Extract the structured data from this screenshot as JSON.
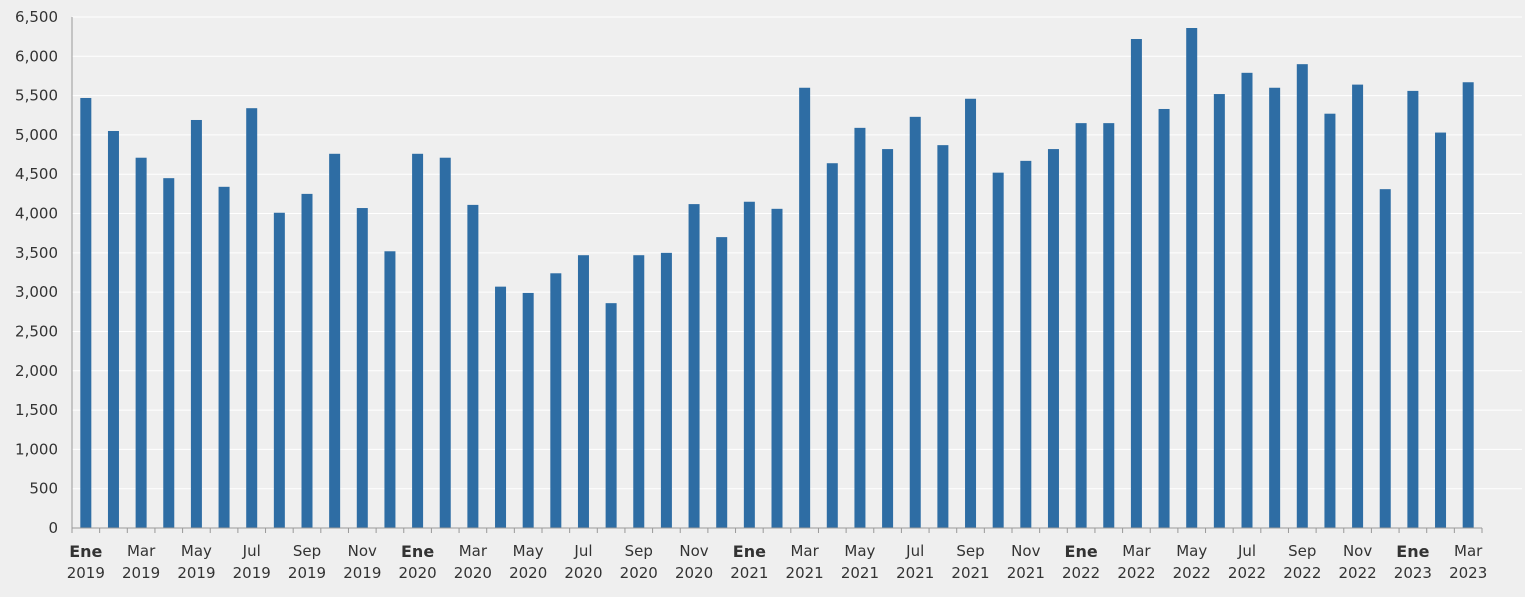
{
  "chart_data": {
    "type": "bar",
    "title": "",
    "xlabel": "",
    "ylabel": "",
    "ylim": [
      0,
      6500
    ],
    "yticks": [
      0,
      500,
      1000,
      1500,
      2000,
      2500,
      3000,
      3500,
      4000,
      4500,
      5000,
      5500,
      6000,
      6500
    ],
    "ytick_labels": [
      "0",
      "500",
      "1,000",
      "1,500",
      "2,000",
      "2,500",
      "3,000",
      "3,500",
      "4,000",
      "4,500",
      "5,000",
      "5,500",
      "6,000",
      "6,500"
    ],
    "grid": true,
    "color": "#2e6da4",
    "categories": [
      "Ene 2019",
      "Feb 2019",
      "Mar 2019",
      "Abr 2019",
      "May 2019",
      "Jun 2019",
      "Jul 2019",
      "Ago 2019",
      "Sep 2019",
      "Oct 2019",
      "Nov 2019",
      "Dic 2019",
      "Ene 2020",
      "Feb 2020",
      "Mar 2020",
      "Abr 2020",
      "May 2020",
      "Jun 2020",
      "Jul 2020",
      "Ago 2020",
      "Sep 2020",
      "Oct 2020",
      "Nov 2020",
      "Dic 2020",
      "Ene 2021",
      "Feb 2021",
      "Mar 2021",
      "Abr 2021",
      "May 2021",
      "Jun 2021",
      "Jul 2021",
      "Ago 2021",
      "Sep 2021",
      "Oct 2021",
      "Nov 2021",
      "Dic 2021",
      "Ene 2022",
      "Feb 2022",
      "Mar 2022",
      "Abr 2022",
      "May 2022",
      "Jun 2022",
      "Jul 2022",
      "Ago 2022",
      "Sep 2022",
      "Oct 2022",
      "Nov 2022",
      "Dic 2022",
      "Ene 2023",
      "Feb 2023",
      "Mar 2023"
    ],
    "values": [
      5470,
      5050,
      4710,
      4450,
      5190,
      4340,
      5340,
      4010,
      4250,
      4760,
      4070,
      3520,
      4760,
      4710,
      4110,
      3070,
      2990,
      3240,
      3470,
      2860,
      3470,
      3500,
      4120,
      3700,
      4150,
      4060,
      5600,
      4640,
      5090,
      4820,
      5230,
      4870,
      5460,
      4520,
      4670,
      4820,
      5150,
      5150,
      6220,
      5330,
      6360,
      5520,
      5790,
      5600,
      5900,
      5270,
      5640,
      4310,
      5560,
      5030,
      5670
    ],
    "xtick_labels": [
      {
        "index": 0,
        "month": "Ene",
        "year": "2019"
      },
      {
        "index": 2,
        "month": "Mar",
        "year": "2019"
      },
      {
        "index": 4,
        "month": "May",
        "year": "2019"
      },
      {
        "index": 6,
        "month": "Jul",
        "year": "2019"
      },
      {
        "index": 8,
        "month": "Sep",
        "year": "2019"
      },
      {
        "index": 10,
        "month": "Nov",
        "year": "2019"
      },
      {
        "index": 12,
        "month": "Ene",
        "year": "2020"
      },
      {
        "index": 14,
        "month": "Mar",
        "year": "2020"
      },
      {
        "index": 16,
        "month": "May",
        "year": "2020"
      },
      {
        "index": 18,
        "month": "Jul",
        "year": "2020"
      },
      {
        "index": 20,
        "month": "Sep",
        "year": "2020"
      },
      {
        "index": 22,
        "month": "Nov",
        "year": "2020"
      },
      {
        "index": 24,
        "month": "Ene",
        "year": "2021"
      },
      {
        "index": 26,
        "month": "Mar",
        "year": "2021"
      },
      {
        "index": 28,
        "month": "May",
        "year": "2021"
      },
      {
        "index": 30,
        "month": "Jul",
        "year": "2021"
      },
      {
        "index": 32,
        "month": "Sep",
        "year": "2021"
      },
      {
        "index": 34,
        "month": "Nov",
        "year": "2021"
      },
      {
        "index": 36,
        "month": "Ene",
        "year": "2022"
      },
      {
        "index": 38,
        "month": "Mar",
        "year": "2022"
      },
      {
        "index": 40,
        "month": "May",
        "year": "2022"
      },
      {
        "index": 42,
        "month": "Jul",
        "year": "2022"
      },
      {
        "index": 44,
        "month": "Sep",
        "year": "2022"
      },
      {
        "index": 46,
        "month": "Nov",
        "year": "2022"
      },
      {
        "index": 48,
        "month": "Ene",
        "year": "2023"
      },
      {
        "index": 50,
        "month": "Mar",
        "year": "2023"
      }
    ]
  }
}
